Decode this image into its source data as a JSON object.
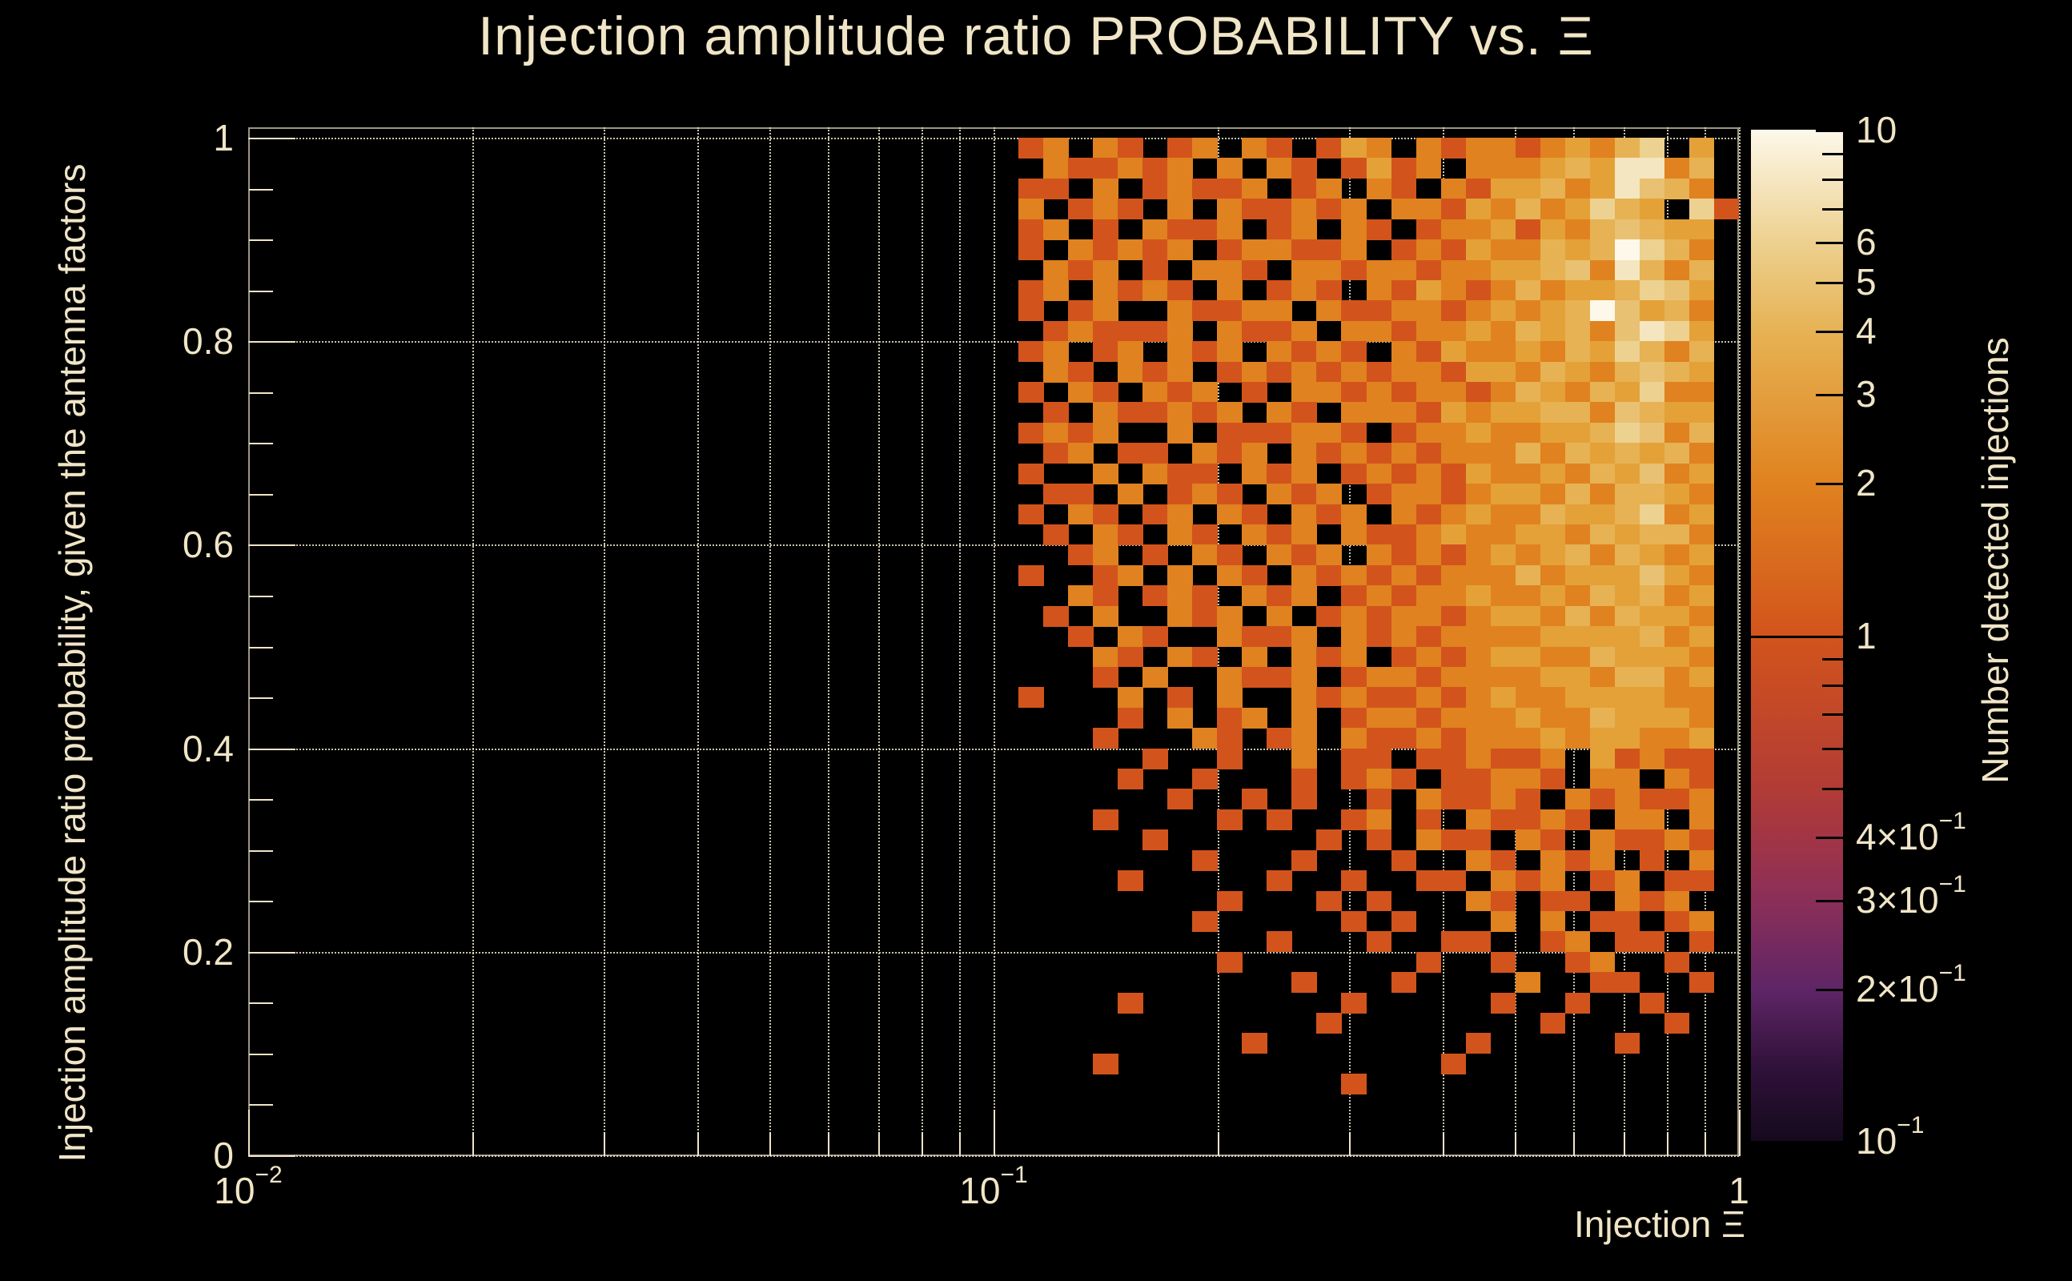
{
  "colors": {
    "background": "#000000",
    "text": "#f0e5c6",
    "grid": "#f0e8cd",
    "tick": "#f0e5c6",
    "colorbar_tick": "#000000"
  },
  "chart_data": {
    "type": "heatmap",
    "title": "Injection amplitude ratio PROBABILITY vs.  Ξ",
    "xlabel": "Injection Ξ",
    "ylabel": "Injection amplitude ratio probability, given the antenna factors",
    "colorbar_label": "Number detected injections",
    "x_scale": "log",
    "x_range": [
      0.01,
      1
    ],
    "y_scale": "linear",
    "y_range": [
      0,
      1.01
    ],
    "z_scale": "log",
    "z_range": [
      0.1,
      10
    ],
    "grid": "dotted",
    "x_ticks": [
      {
        "base": "10",
        "exp": "−2",
        "value": 0.01
      },
      {
        "base": "10",
        "exp": "−1",
        "value": 0.1
      },
      {
        "base": "1",
        "exp": null,
        "value": 1
      }
    ],
    "x_minor_ticks": [
      0.02,
      0.03,
      0.04,
      0.05,
      0.06,
      0.07,
      0.08,
      0.09,
      0.2,
      0.3,
      0.4,
      0.5,
      0.6,
      0.7,
      0.8,
      0.9
    ],
    "y_ticks": [
      {
        "label": "1",
        "value": 1
      },
      {
        "label": "0.8",
        "value": 0.8
      },
      {
        "label": "0.6",
        "value": 0.6
      },
      {
        "label": "0.4",
        "value": 0.4
      },
      {
        "label": "0.2",
        "value": 0.2
      },
      {
        "label": "0",
        "value": 0
      }
    ],
    "y_minor_step": 0.05,
    "colorbar_ticks": [
      {
        "base": "10",
        "exp": null,
        "value": 10
      },
      {
        "base": "6",
        "exp": null,
        "value": 6
      },
      {
        "base": "5",
        "exp": null,
        "value": 5
      },
      {
        "base": "4",
        "exp": null,
        "value": 4
      },
      {
        "base": "3",
        "exp": null,
        "value": 3
      },
      {
        "base": "2",
        "exp": null,
        "value": 2
      },
      {
        "base": "1",
        "exp": null,
        "value": 1
      },
      {
        "base": "4×10",
        "exp": "−1",
        "value": 0.4
      },
      {
        "base": "3×10",
        "exp": "−1",
        "value": 0.3
      },
      {
        "base": "2×10",
        "exp": "−1",
        "value": 0.2
      },
      {
        "base": "10",
        "exp": "−1",
        "value": 0.1
      }
    ],
    "colorbar_minor_ticks": [
      9,
      8,
      7,
      0.9,
      0.8,
      0.7,
      0.6,
      0.5
    ],
    "colorbar_gradient_stops": [
      {
        "pos": 0,
        "color": "#fdf8ea"
      },
      {
        "pos": 11,
        "color": "#edd190"
      },
      {
        "pos": 20,
        "color": "#e6b254"
      },
      {
        "pos": 35,
        "color": "#e0821f"
      },
      {
        "pos": 50,
        "color": "#d2541c"
      },
      {
        "pos": 65,
        "color": "#b23c35"
      },
      {
        "pos": 70,
        "color": "#a23545"
      },
      {
        "pos": 76,
        "color": "#8c2f58"
      },
      {
        "pos": 85,
        "color": "#5f2566"
      },
      {
        "pos": 93,
        "color": "#2e1138"
      },
      {
        "pos": 100,
        "color": "#160a1e"
      }
    ],
    "palette": {
      "1": "#d2541c",
      "2": "#e0821f",
      "3": "#e4a138",
      "4": "#e6b254",
      "5": "#e9c172",
      "6": "#edd190",
      "7": "#f0dcaa",
      "8": "#f4e6c0",
      "9": "#f9efd4",
      "A": "#fdf8ea"
    },
    "bins": {
      "nx": 60,
      "ny": 50,
      "col_start": 31
    },
    "cells_rows": [
      "12021012021013202122123246030",
      "02112120202101312022234388240",
      "11020121120120210213342385420",
      "20121020211212022132423643061",
      "12010211201202101223132454330",
      "102121201221120121322434A6420",
      "02120102210221221223345284240",
      "12021210201210213212423346530",
      "10120021122021122123234A53420",
      "01211120211202212232434258630",
      "12012021202121021322324364240",
      "02102120121212122133243245430",
      "10210212010221212212432436220",
      "01021121202102221323344254330",
      "12120020111221012232233465240",
      "01201102120212121222424343420",
      "10020211021201212132232435230",
      "01102012102120122123324244320",
      "10210120210212021232243346230",
      "01021021021202112322332434420",
      "00120102102120212123234243230",
      "10012020210212121222423335320",
      "00210121021201212232232434230",
      "01020021202012122123324243320",
      "00102100211202121222233334230",
      "00021021020212012123322433320",
      "00010200211201221222233244230",
      "10002010200212112123223333220",
      "00001020120201221222322433320",
      "00010002101202112122232332230",
      "00000100100201101121120312110",
      "00001001000101210112210220210",
      "00000010010100102112102121120",
      "00010000101001201021121022020",
      "00000100000010102110210211210",
      "00000001000100010021021201020",
      "00001000001001001102120120110",
      "00000000100010100021011021200",
      "00000001000001010002020110120",
      "00000000001000100110012011010",
      "00000000100000001001001200100",
      "00000000000100010000200110010",
      "00001000000001000001001001000",
      "00000000000010000000010000100",
      "00000000010000000010000010000",
      "00010000000000000100000000000",
      "00000000000001000000000000000",
      "00000000000000000000000000000",
      "00000000000000000000000000000",
      "00000000000000000000000000000"
    ]
  }
}
